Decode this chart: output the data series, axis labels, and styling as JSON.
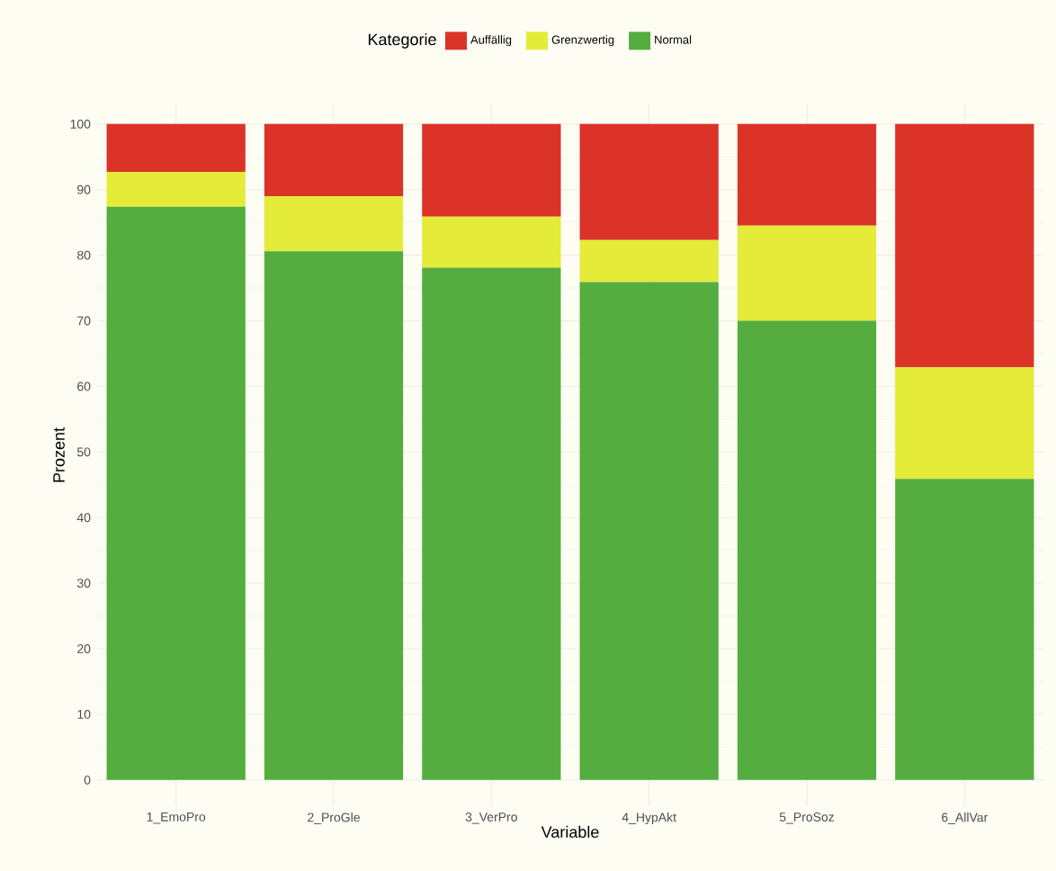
{
  "chart_data": {
    "type": "bar",
    "stacked": true,
    "xlabel": "Variable",
    "ylabel": "Prozent",
    "legend_title": "Kategorie",
    "legend": "top",
    "categories": [
      "1_EmoPro",
      "2_ProGle",
      "3_VerPro",
      "4_HypAkt",
      "5_ProSoz",
      "6_AllVar"
    ],
    "series": [
      {
        "name": "Normal",
        "color": "#55ad3f",
        "values": [
          87.4,
          80.6,
          78.1,
          75.9,
          70.0,
          45.9
        ]
      },
      {
        "name": "Grenzwertig",
        "color": "#e4eb38",
        "values": [
          5.3,
          8.4,
          7.8,
          6.4,
          14.5,
          17.0
        ]
      },
      {
        "name": "Auffällig",
        "color": "#dc3328",
        "values": [
          7.3,
          11.0,
          14.1,
          17.7,
          15.5,
          37.1
        ]
      }
    ],
    "ylim": [
      -4,
      103
    ],
    "yticks": [
      0,
      10,
      20,
      30,
      40,
      50,
      60,
      70,
      80,
      90,
      100
    ],
    "grid": true
  }
}
